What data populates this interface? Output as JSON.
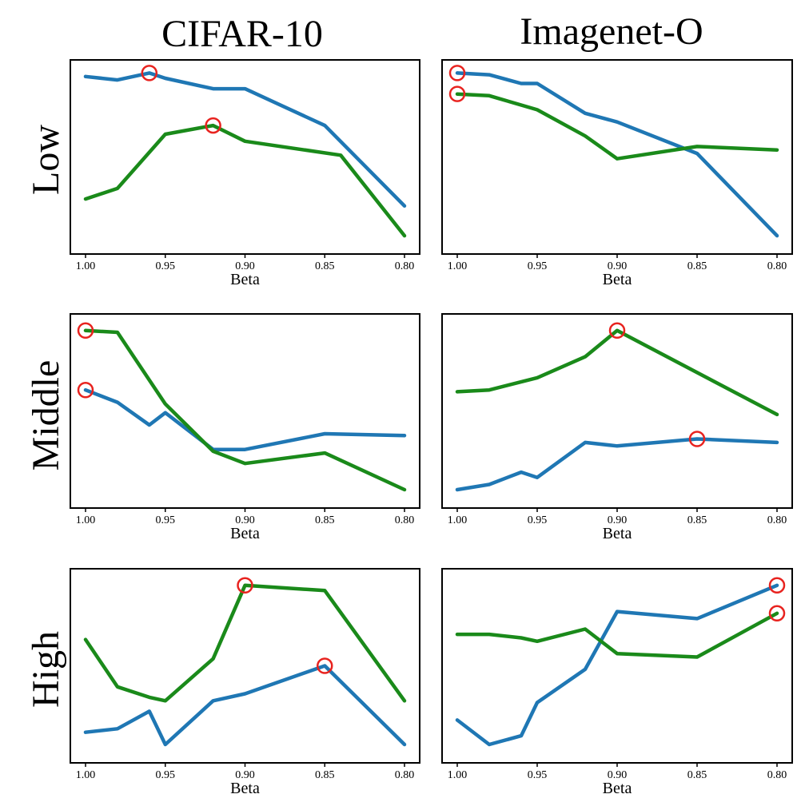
{
  "figure": {
    "col_titles": [
      "CIFAR-10",
      "Imagenet-O"
    ],
    "row_labels": [
      "Low",
      "Middle",
      "High"
    ]
  },
  "colors": {
    "blue": "#1f77b4",
    "green": "#1a8a1a",
    "marker": "#e8231f"
  },
  "chart_data": [
    {
      "type": "line",
      "dataset": "CIFAR-10",
      "level": "Low",
      "xlabel": "Beta",
      "xlim": [
        1.0,
        0.8
      ],
      "ylim": [
        0,
        1
      ],
      "xticks": [
        1.0,
        0.95,
        0.9,
        0.85,
        0.8
      ],
      "xtick_labels": [
        "1.00",
        "0.95",
        "0.90",
        "0.85",
        "0.80"
      ],
      "series": [
        {
          "name": "blue",
          "x": [
            1.0,
            0.98,
            0.96,
            0.95,
            0.92,
            0.9,
            0.85,
            0.8
          ],
          "y": [
            0.96,
            0.94,
            0.98,
            0.95,
            0.89,
            0.89,
            0.68,
            0.22
          ],
          "best_index": 2
        },
        {
          "name": "green",
          "x": [
            1.0,
            0.98,
            0.95,
            0.92,
            0.9,
            0.84,
            0.8
          ],
          "y": [
            0.26,
            0.32,
            0.63,
            0.68,
            0.59,
            0.51,
            0.05
          ],
          "best_index": 3
        }
      ]
    },
    {
      "type": "line",
      "dataset": "Imagenet-O",
      "level": "Low",
      "xlabel": "Beta",
      "xlim": [
        1.0,
        0.8
      ],
      "ylim": [
        0,
        1
      ],
      "xticks": [
        1.0,
        0.95,
        0.9,
        0.85,
        0.8
      ],
      "xtick_labels": [
        "1.00",
        "0.95",
        "0.90",
        "0.85",
        "0.80"
      ],
      "series": [
        {
          "name": "blue",
          "x": [
            1.0,
            0.98,
            0.96,
            0.95,
            0.92,
            0.9,
            0.85,
            0.8
          ],
          "y": [
            0.98,
            0.97,
            0.92,
            0.92,
            0.75,
            0.7,
            0.52,
            0.05
          ],
          "best_index": 0
        },
        {
          "name": "green",
          "x": [
            1.0,
            0.98,
            0.95,
            0.92,
            0.9,
            0.85,
            0.8
          ],
          "y": [
            0.86,
            0.85,
            0.77,
            0.62,
            0.49,
            0.56,
            0.54
          ],
          "best_index": 0
        }
      ]
    },
    {
      "type": "line",
      "dataset": "CIFAR-10",
      "level": "Middle",
      "xlabel": "Beta",
      "xlim": [
        1.0,
        0.8
      ],
      "ylim": [
        0,
        1
      ],
      "xticks": [
        1.0,
        0.95,
        0.9,
        0.85,
        0.8
      ],
      "xtick_labels": [
        "1.00",
        "0.95",
        "0.90",
        "0.85",
        "0.80"
      ],
      "series": [
        {
          "name": "blue",
          "x": [
            1.0,
            0.98,
            0.96,
            0.95,
            0.92,
            0.9,
            0.85,
            0.8
          ],
          "y": [
            0.62,
            0.55,
            0.42,
            0.49,
            0.28,
            0.28,
            0.37,
            0.36
          ],
          "best_index": 0
        },
        {
          "name": "green",
          "x": [
            1.0,
            0.98,
            0.95,
            0.92,
            0.9,
            0.85,
            0.8
          ],
          "y": [
            0.96,
            0.95,
            0.54,
            0.27,
            0.2,
            0.26,
            0.05
          ],
          "best_index": 0
        }
      ]
    },
    {
      "type": "line",
      "dataset": "Imagenet-O",
      "level": "Middle",
      "xlabel": "Beta",
      "xlim": [
        1.0,
        0.8
      ],
      "ylim": [
        0,
        1
      ],
      "xticks": [
        1.0,
        0.95,
        0.9,
        0.85,
        0.8
      ],
      "xtick_labels": [
        "1.00",
        "0.95",
        "0.90",
        "0.85",
        "0.80"
      ],
      "series": [
        {
          "name": "blue",
          "x": [
            1.0,
            0.98,
            0.96,
            0.95,
            0.92,
            0.9,
            0.85,
            0.8
          ],
          "y": [
            0.05,
            0.08,
            0.15,
            0.12,
            0.32,
            0.3,
            0.34,
            0.32
          ],
          "best_index": 6
        },
        {
          "name": "green",
          "x": [
            1.0,
            0.98,
            0.95,
            0.92,
            0.9,
            0.8
          ],
          "y": [
            0.61,
            0.62,
            0.69,
            0.81,
            0.96,
            0.48
          ],
          "best_index": 4
        }
      ]
    },
    {
      "type": "line",
      "dataset": "CIFAR-10",
      "level": "High",
      "xlabel": "Beta",
      "xlim": [
        1.0,
        0.8
      ],
      "ylim": [
        0,
        1
      ],
      "xticks": [
        1.0,
        0.95,
        0.9,
        0.85,
        0.8
      ],
      "xtick_labels": [
        "1.00",
        "0.95",
        "0.90",
        "0.85",
        "0.80"
      ],
      "series": [
        {
          "name": "blue",
          "x": [
            1.0,
            0.98,
            0.96,
            0.95,
            0.92,
            0.9,
            0.85,
            0.8
          ],
          "y": [
            0.12,
            0.14,
            0.24,
            0.05,
            0.3,
            0.34,
            0.5,
            0.05
          ],
          "best_index": 6
        },
        {
          "name": "green",
          "x": [
            1.0,
            0.98,
            0.96,
            0.95,
            0.92,
            0.9,
            0.85,
            0.8
          ],
          "y": [
            0.65,
            0.38,
            0.32,
            0.3,
            0.54,
            0.96,
            0.93,
            0.3
          ],
          "best_index": 5
        }
      ]
    },
    {
      "type": "line",
      "dataset": "Imagenet-O",
      "level": "High",
      "xlabel": "Beta",
      "xlim": [
        1.0,
        0.8
      ],
      "ylim": [
        0,
        1
      ],
      "xticks": [
        1.0,
        0.95,
        0.9,
        0.85,
        0.8
      ],
      "xtick_labels": [
        "1.00",
        "0.95",
        "0.90",
        "0.85",
        "0.80"
      ],
      "series": [
        {
          "name": "blue",
          "x": [
            1.0,
            0.98,
            0.96,
            0.95,
            0.92,
            0.9,
            0.85,
            0.8
          ],
          "y": [
            0.19,
            0.05,
            0.1,
            0.29,
            0.48,
            0.81,
            0.77,
            0.96
          ],
          "best_index": 7
        },
        {
          "name": "green",
          "x": [
            1.0,
            0.98,
            0.96,
            0.95,
            0.92,
            0.9,
            0.85,
            0.8
          ],
          "y": [
            0.68,
            0.68,
            0.66,
            0.64,
            0.71,
            0.57,
            0.55,
            0.8
          ],
          "best_index": 7
        }
      ]
    }
  ]
}
